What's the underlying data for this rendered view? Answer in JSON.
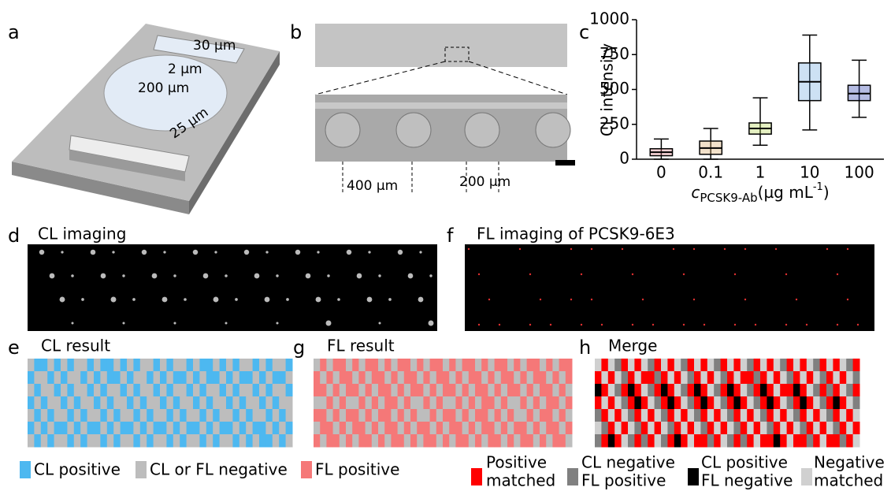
{
  "panels": {
    "a": {
      "letter": "a",
      "labels": [
        "30 µm",
        "2 µm",
        "200 µm",
        "25 µm"
      ]
    },
    "b": {
      "letter": "b",
      "labels": [
        "400 µm",
        "200 µm"
      ]
    },
    "d": {
      "letter": "d",
      "title": "CL imaging"
    },
    "e": {
      "letter": "e",
      "title": "CL result"
    },
    "f": {
      "letter": "f",
      "title": "FL imaging of PCSK9-6E3"
    },
    "g": {
      "letter": "g",
      "title": "FL result"
    },
    "h": {
      "letter": "h",
      "title": "Merge"
    }
  },
  "legend": {
    "cl_positive": "CL positive",
    "negative": "CL or FL negative",
    "fl_positive": "FL positive",
    "merge": [
      [
        "Positive",
        "matched"
      ],
      [
        "CL negative",
        "FL positive"
      ],
      [
        "CL positive",
        "FL negative"
      ],
      [
        "Negative",
        "matched"
      ]
    ]
  },
  "chart_data": {
    "type": "box",
    "panel_letter": "c",
    "y_label": "CL intensity",
    "x_label": {
      "symbol": "c",
      "subscript": "PCSK9-Ab",
      "unit": "(µg mL",
      "superscript": "-1",
      "close": ")"
    },
    "categories": [
      "0",
      "0.1",
      "1",
      "10",
      "100"
    ],
    "boxes": [
      {
        "min": 0,
        "q1": 25,
        "median": 50,
        "q3": 75,
        "max": 145,
        "color": "#e8808a"
      },
      {
        "min": 0,
        "q1": 35,
        "median": 80,
        "q3": 130,
        "max": 220,
        "color": "#d9a868"
      },
      {
        "min": 100,
        "q1": 180,
        "median": 220,
        "q3": 260,
        "max": 440,
        "color": "#b5d450"
      },
      {
        "min": 210,
        "q1": 420,
        "median": 555,
        "q3": 690,
        "max": 890,
        "color": "#6fa8e0"
      },
      {
        "min": 300,
        "q1": 420,
        "median": 470,
        "q3": 530,
        "max": 710,
        "color": "#2a3fb0"
      }
    ],
    "ylim": [
      0,
      1000
    ],
    "yticks": [
      0,
      250,
      500,
      750,
      1000
    ]
  }
}
